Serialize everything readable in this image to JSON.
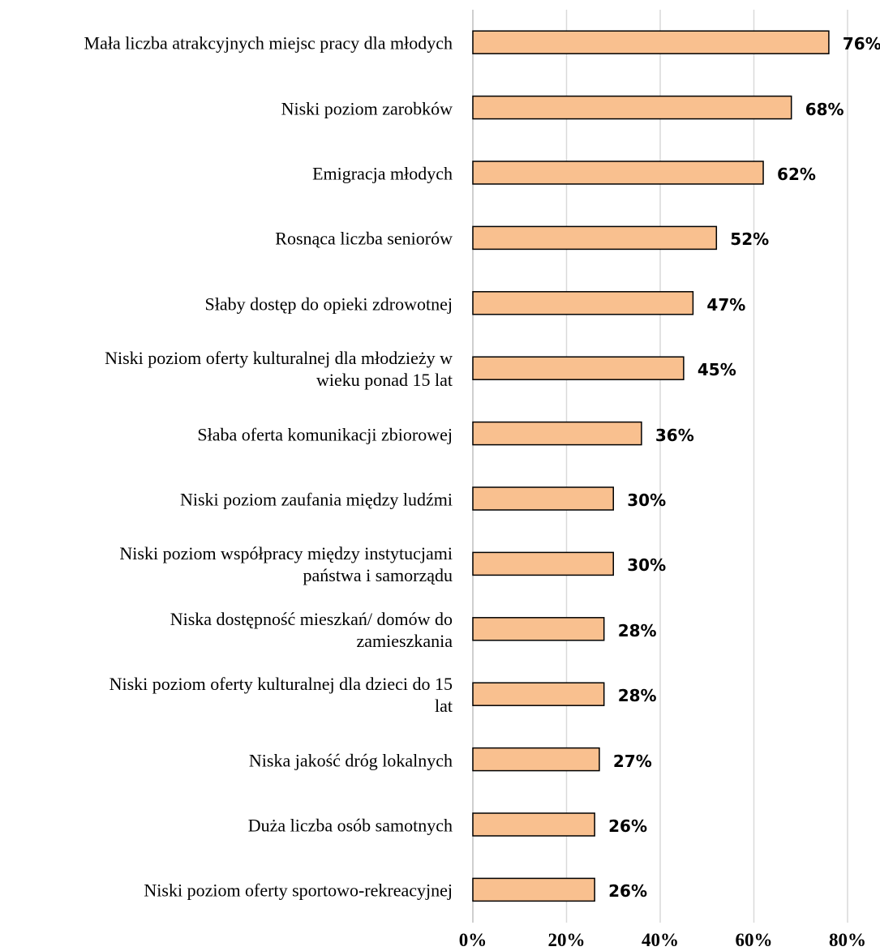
{
  "chart_data": {
    "type": "bar",
    "orientation": "horizontal",
    "categories": [
      "Mała liczba atrakcyjnych miejsc pracy dla młodych",
      "Niski poziom zarobków",
      "Emigracja młodych",
      "Rosnąca liczba seniorów",
      "Słaby dostęp do opieki zdrowotnej",
      "Niski poziom oferty kulturalnej dla młodzieży w wieku ponad 15 lat",
      "Słaba oferta komunikacji zbiorowej",
      "Niski poziom zaufania między ludźmi",
      "Niski poziom współpracy między instytucjami państwa i samorządu",
      "Niska dostępność mieszkań/ domów do zamieszkania",
      "Niski poziom oferty kulturalnej dla dzieci do 15 lat",
      "Niska jakość dróg lokalnych",
      "Duża liczba osób samotnych",
      "Niski poziom oferty sportowo-rekreacyjnej"
    ],
    "category_lines": [
      [
        "Mała liczba atrakcyjnych miejsc pracy dla młodych"
      ],
      [
        "Niski poziom zarobków"
      ],
      [
        "Emigracja młodych"
      ],
      [
        "Rosnąca liczba seniorów"
      ],
      [
        "Słaby dostęp do opieki zdrowotnej"
      ],
      [
        "Niski poziom oferty kulturalnej dla młodzieży w",
        "wieku ponad 15 lat"
      ],
      [
        "Słaba oferta komunikacji zbiorowej"
      ],
      [
        "Niski poziom zaufania między ludźmi"
      ],
      [
        "Niski poziom współpracy między instytucjami",
        "państwa i samorządu"
      ],
      [
        "Niska dostępność mieszkań/ domów do",
        "zamieszkania"
      ],
      [
        "Niski poziom oferty kulturalnej dla dzieci do 15",
        "lat"
      ],
      [
        "Niska jakość dróg lokalnych"
      ],
      [
        "Duża liczba osób samotnych"
      ],
      [
        "Niski poziom oferty sportowo-rekreacyjnej"
      ]
    ],
    "values": [
      76,
      68,
      62,
      52,
      47,
      45,
      36,
      30,
      30,
      28,
      28,
      27,
      26,
      26
    ],
    "value_labels": [
      "76%",
      "68%",
      "62%",
      "52%",
      "47%",
      "45%",
      "36%",
      "30%",
      "30%",
      "28%",
      "28%",
      "27%",
      "26%",
      "26%"
    ],
    "xlim": [
      0,
      80
    ],
    "x_ticks": [
      0,
      20,
      40,
      60,
      80
    ],
    "x_tick_labels": [
      "0%",
      "20%",
      "40%",
      "60%",
      "80%"
    ],
    "grid": true,
    "legend": "none",
    "title": "",
    "xlabel": "",
    "ylabel": "",
    "bar_color": "#f9c08f",
    "bar_edge_color": "#000000",
    "grid_color": "#d9d9d9"
  }
}
